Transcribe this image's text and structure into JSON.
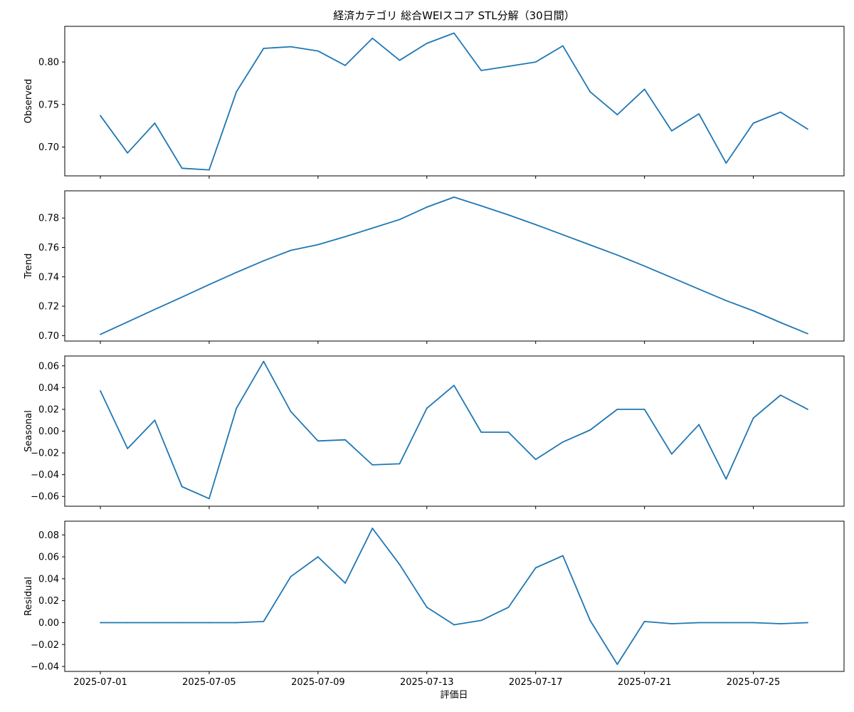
{
  "figure": {
    "title": "経済カテゴリ 総合WEIスコア STL分解（30日間）",
    "xlabel": "評価日"
  },
  "chart_data": {
    "type": "line",
    "title": "経済カテゴリ 総合WEIスコア STL分解（30日間）",
    "xlabel": "評価日",
    "x": [
      "2025-07-01",
      "2025-07-02",
      "2025-07-03",
      "2025-07-04",
      "2025-07-05",
      "2025-07-06",
      "2025-07-07",
      "2025-07-08",
      "2025-07-09",
      "2025-07-10",
      "2025-07-11",
      "2025-07-12",
      "2025-07-13",
      "2025-07-14",
      "2025-07-15",
      "2025-07-16",
      "2025-07-17",
      "2025-07-18",
      "2025-07-19",
      "2025-07-20",
      "2025-07-21",
      "2025-07-22",
      "2025-07-23",
      "2025-07-24",
      "2025-07-25",
      "2025-07-26",
      "2025-07-27"
    ],
    "xticks": [
      "2025-07-01",
      "2025-07-05",
      "2025-07-09",
      "2025-07-13",
      "2025-07-17",
      "2025-07-21",
      "2025-07-25"
    ],
    "color": "#1f77b4",
    "grid": false,
    "panels": [
      {
        "name": "Observed",
        "ylabel": "Observed",
        "ylim": [
          0.666,
          0.842
        ],
        "yticks": [
          0.7,
          0.75,
          0.8
        ],
        "ytick_labels": [
          "0.70",
          "0.75",
          "0.80"
        ],
        "values": [
          0.737,
          0.693,
          0.728,
          0.675,
          0.673,
          0.765,
          0.816,
          0.818,
          0.813,
          0.796,
          0.828,
          0.802,
          0.822,
          0.834,
          0.79,
          0.795,
          0.8,
          0.819,
          0.765,
          0.738,
          0.768,
          0.719,
          0.739,
          0.681,
          0.728,
          0.741,
          0.721
        ]
      },
      {
        "name": "Trend",
        "ylabel": "Trend",
        "ylim": [
          0.6963,
          0.7985
        ],
        "yticks": [
          0.7,
          0.72,
          0.74,
          0.76,
          0.78
        ],
        "ytick_labels": [
          "0.70",
          "0.72",
          "0.74",
          "0.76",
          "0.78"
        ],
        "values": [
          0.7008,
          0.7093,
          0.7178,
          0.7262,
          0.7347,
          0.743,
          0.7509,
          0.758,
          0.7619,
          0.7673,
          0.7731,
          0.779,
          0.7874,
          0.7942,
          0.7883,
          0.7821,
          0.7755,
          0.7686,
          0.7617,
          0.7548,
          0.7473,
          0.7395,
          0.7316,
          0.7238,
          0.7169,
          0.7089,
          0.7013
        ]
      },
      {
        "name": "Seasonal",
        "ylabel": "Seasonal",
        "ylim": [
          -0.069,
          0.069
        ],
        "yticks": [
          -0.06,
          -0.04,
          -0.02,
          0.0,
          0.02,
          0.04,
          0.06
        ],
        "ytick_labels": [
          "−0.06",
          "−0.04",
          "−0.02",
          "0.00",
          "0.02",
          "0.04",
          "0.06"
        ],
        "values": [
          0.037,
          -0.016,
          0.01,
          -0.051,
          -0.062,
          0.021,
          0.064,
          0.018,
          -0.009,
          -0.008,
          -0.031,
          -0.03,
          0.021,
          0.042,
          -0.001,
          -0.001,
          -0.026,
          -0.01,
          0.001,
          0.02,
          0.02,
          -0.021,
          0.006,
          -0.044,
          0.012,
          0.033,
          0.02
        ]
      },
      {
        "name": "Residual",
        "ylabel": "Residual",
        "ylim": [
          -0.0445,
          0.0925
        ],
        "yticks": [
          -0.04,
          -0.02,
          0.0,
          0.02,
          0.04,
          0.06,
          0.08
        ],
        "ytick_labels": [
          "−0.04",
          "−0.02",
          "0.00",
          "0.02",
          "0.04",
          "0.06",
          "0.08"
        ],
        "values": [
          0.0,
          0.0,
          0.0,
          0.0,
          0.0,
          0.0,
          0.001,
          0.042,
          0.06,
          0.036,
          0.086,
          0.053,
          0.014,
          -0.002,
          0.002,
          0.014,
          0.05,
          0.061,
          0.002,
          -0.038,
          0.001,
          -0.001,
          0.0,
          0.0,
          0.0,
          -0.001,
          0.0
        ]
      }
    ]
  }
}
